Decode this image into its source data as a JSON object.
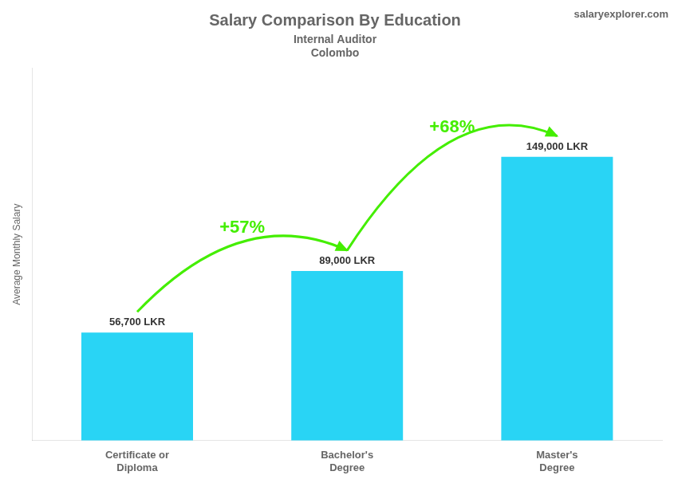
{
  "chart_data": {
    "type": "bar",
    "title": "Salary Comparison By Education",
    "subtitle": [
      "Internal Auditor",
      "Colombo"
    ],
    "ylabel": "Average Monthly Salary",
    "categories": [
      "Certificate or\nDiploma",
      "Bachelor's\nDegree",
      "Master's\nDegree"
    ],
    "values": [
      56700,
      89000,
      149000
    ],
    "value_labels": [
      "56,700 LKR",
      "89,000 LKR",
      "149,000 LKR"
    ],
    "data_labels": true,
    "color": "#29d4f5",
    "ylim": [
      0,
      195500
    ],
    "grid": false,
    "tick_labels": "x",
    "annotations": [
      {
        "text": "+57%",
        "from": "Certificate or\nDiploma",
        "to": "Bachelor's\nDegree",
        "color": "#44ee00"
      },
      {
        "text": "+68%",
        "from": "Bachelor's\nDegree",
        "to": "Master's\nDegree",
        "color": "#44ee00"
      },
      {
        "text": "salaryexplorer.com"
      }
    ]
  }
}
